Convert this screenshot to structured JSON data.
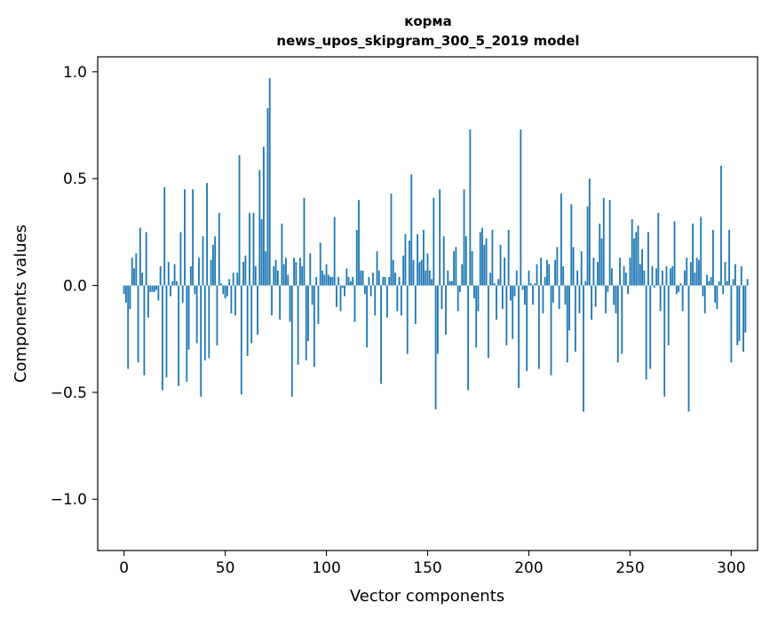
{
  "chart_data": {
    "type": "bar",
    "title": [
      "корма",
      "news_upos_skipgram_300_5_2019 model"
    ],
    "xlabel": "Vector components",
    "ylabel": "Components values",
    "xlim": [
      -13,
      313
    ],
    "ylim": [
      -1.24,
      1.07
    ],
    "xticks": [
      0,
      50,
      100,
      150,
      200,
      250,
      300
    ],
    "yticks": [
      1.0,
      0.5,
      0.0,
      -0.5,
      -1.0
    ],
    "ytick_labels": [
      "1.0",
      "0.5",
      "0.0",
      "−0.5",
      "−1.0"
    ],
    "bar_color": "#1f77b4",
    "grid": false,
    "values": [
      -0.04,
      -0.08,
      -0.39,
      -0.11,
      0.13,
      0.08,
      0.15,
      -0.36,
      0.27,
      0.06,
      -0.42,
      0.25,
      -0.15,
      -0.03,
      -0.03,
      -0.03,
      -0.02,
      -0.07,
      0.09,
      -0.49,
      0.46,
      -0.43,
      0.11,
      -0.05,
      0.02,
      0.1,
      0.02,
      -0.47,
      0.25,
      -0.08,
      0.45,
      -0.45,
      -0.3,
      0.09,
      0.45,
      -0.04,
      -0.27,
      0.13,
      -0.52,
      0.23,
      -0.35,
      0.48,
      -0.34,
      0.12,
      0.19,
      0.23,
      -0.28,
      0.34,
      0.01,
      -0.04,
      -0.06,
      -0.05,
      0.03,
      -0.13,
      0.06,
      -0.14,
      0.06,
      0.61,
      -0.51,
      0.11,
      0.14,
      -0.33,
      0.34,
      -0.27,
      0.34,
      0.09,
      -0.23,
      0.54,
      0.31,
      0.65,
      0.16,
      0.83,
      0.97,
      -0.14,
      0.09,
      0.12,
      0.07,
      -0.16,
      0.29,
      0.1,
      0.13,
      0.05,
      -0.17,
      -0.52,
      0.13,
      0.11,
      -0.37,
      0.13,
      0.09,
      0.41,
      -0.35,
      -0.26,
      0.15,
      -0.09,
      -0.38,
      0.04,
      -0.18,
      0.2,
      0.07,
      0.05,
      0.1,
      0.05,
      0.04,
      0.04,
      0.32,
      -0.1,
      0.04,
      -0.12,
      -0.01,
      -0.05,
      0.08,
      0.04,
      0.02,
      0.04,
      -0.17,
      0.26,
      0.4,
      0.07,
      0.07,
      -0.04,
      -0.29,
      0.04,
      -0.05,
      0.06,
      -0.14,
      0.16,
      0.07,
      -0.46,
      0.04,
      0.04,
      -0.15,
      0.04,
      0.43,
      0.12,
      0.06,
      -0.12,
      0.04,
      -0.14,
      0.14,
      0.24,
      -0.32,
      0.21,
      0.52,
      0.12,
      -0.18,
      0.24,
      0.11,
      0.12,
      0.26,
      0.07,
      0.15,
      0.07,
      0.03,
      0.41,
      -0.58,
      -0.32,
      0.45,
      -0.11,
      0.23,
      -0.23,
      0.07,
      0.02,
      0.02,
      0.16,
      0.18,
      -0.12,
      -0.03,
      0.1,
      0.45,
      0.23,
      -0.49,
      0.73,
      0.16,
      -0.06,
      -0.29,
      -0.12,
      0.25,
      0.27,
      0.19,
      0.22,
      -0.34,
      0.06,
      0.26,
      0.01,
      -0.16,
      0.03,
      0.19,
      -0.11,
      0.13,
      -0.28,
      0.26,
      -0.07,
      -0.25,
      -0.05,
      0.07,
      -0.48,
      0.73,
      -0.02,
      -0.09,
      -0.4,
      0.07,
      0.01,
      -0.09,
      0.01,
      0.1,
      -0.39,
      0.13,
      -0.13,
      0.04,
      0.12,
      0.1,
      -0.42,
      -0.08,
      0.12,
      0.18,
      -0.11,
      0.43,
      0.09,
      -0.09,
      -0.36,
      -0.21,
      0.38,
      0.18,
      -0.31,
      0.07,
      -0.13,
      0.16,
      -0.59,
      0.02,
      0.37,
      0.5,
      -0.16,
      0.13,
      -0.1,
      0.11,
      0.29,
      0.22,
      0.41,
      -0.13,
      -0.03,
      0.4,
      0.08,
      -0.09,
      -0.13,
      -0.36,
      0.13,
      -0.32,
      0.09,
      0.06,
      -0.04,
      0.13,
      0.31,
      0.22,
      0.25,
      0.28,
      0.1,
      0.17,
      0.07,
      -0.44,
      0.25,
      -0.39,
      0.09,
      -0.01,
      0.08,
      0.34,
      -0.12,
      0.07,
      -0.52,
      0.09,
      -0.28,
      0.08,
      0.09,
      0.3,
      -0.04,
      -0.03,
      0.01,
      -0.12,
      0.07,
      0.13,
      -0.59,
      0.11,
      0.29,
      0.06,
      0.13,
      0.12,
      0.32,
      -0.05,
      -0.13,
      0.05,
      0.02,
      0.04,
      0.26,
      -0.08,
      -0.11,
      0.02,
      0.56,
      -0.04,
      0.11,
      0.02,
      0.26,
      -0.36,
      0.03,
      0.1,
      -0.28,
      -0.26,
      0.09,
      -0.31,
      -0.22,
      0.03
    ]
  }
}
